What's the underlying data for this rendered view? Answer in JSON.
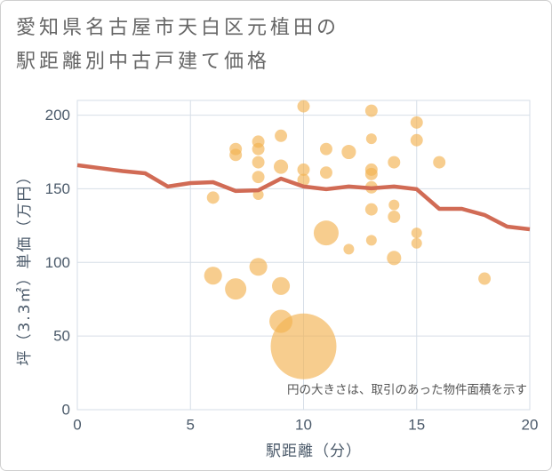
{
  "colors": {
    "bubble": "#f2b252",
    "line": "#d16b55",
    "title": "#666666",
    "axis_text": "#4b5a6a",
    "note_text": "#555555",
    "grid": "#d6dee7"
  },
  "chart_data": {
    "type": "scatter",
    "title_lines": [
      "愛知県名古屋市天白区元植田の",
      "駅距離別中古戸建て価格"
    ],
    "xlabel": "駅距離（分）",
    "ylabel": "坪（3.3㎡）単価（万円）",
    "annotation": "円の大きさは、取引のあった物件面積を示す",
    "xlim": [
      0,
      20
    ],
    "ylim": [
      0,
      210
    ],
    "x_ticks": [
      0,
      5,
      10,
      15,
      20
    ],
    "y_ticks": [
      0,
      50,
      100,
      150,
      200
    ],
    "grid": true,
    "bubbles": [
      {
        "x": 10,
        "y": 206,
        "size": 135
      },
      {
        "x": 13,
        "y": 203,
        "size": 135
      },
      {
        "x": 15,
        "y": 195,
        "size": 135
      },
      {
        "x": 9,
        "y": 186,
        "size": 135
      },
      {
        "x": 8,
        "y": 182,
        "size": 135
      },
      {
        "x": 8,
        "y": 177,
        "size": 135
      },
      {
        "x": 7,
        "y": 177,
        "size": 135
      },
      {
        "x": 7,
        "y": 173,
        "size": 135
      },
      {
        "x": 11,
        "y": 177,
        "size": 135
      },
      {
        "x": 12,
        "y": 175,
        "size": 180
      },
      {
        "x": 13,
        "y": 184,
        "size": 100
      },
      {
        "x": 15,
        "y": 183,
        "size": 135
      },
      {
        "x": 14,
        "y": 168,
        "size": 135
      },
      {
        "x": 16,
        "y": 168,
        "size": 135
      },
      {
        "x": 8,
        "y": 168,
        "size": 135
      },
      {
        "x": 9,
        "y": 165,
        "size": 180
      },
      {
        "x": 10,
        "y": 163,
        "size": 135
      },
      {
        "x": 13,
        "y": 163,
        "size": 135
      },
      {
        "x": 13,
        "y": 160,
        "size": 135
      },
      {
        "x": 11,
        "y": 161,
        "size": 135
      },
      {
        "x": 8,
        "y": 158,
        "size": 135
      },
      {
        "x": 10,
        "y": 156,
        "size": 135
      },
      {
        "x": 13,
        "y": 151,
        "size": 135
      },
      {
        "x": 8,
        "y": 146,
        "size": 100
      },
      {
        "x": 6,
        "y": 144,
        "size": 135
      },
      {
        "x": 14,
        "y": 139,
        "size": 100
      },
      {
        "x": 13,
        "y": 136,
        "size": 135
      },
      {
        "x": 14,
        "y": 131,
        "size": 135
      },
      {
        "x": 15,
        "y": 120,
        "size": 100
      },
      {
        "x": 11,
        "y": 120,
        "size": 545
      },
      {
        "x": 15,
        "y": 113,
        "size": 100
      },
      {
        "x": 13,
        "y": 115,
        "size": 100
      },
      {
        "x": 12,
        "y": 109,
        "size": 100
      },
      {
        "x": 14,
        "y": 103,
        "size": 180
      },
      {
        "x": 8,
        "y": 97,
        "size": 280
      },
      {
        "x": 6,
        "y": 91,
        "size": 280
      },
      {
        "x": 18,
        "y": 89,
        "size": 135
      },
      {
        "x": 9,
        "y": 84,
        "size": 280
      },
      {
        "x": 7,
        "y": 82,
        "size": 400
      },
      {
        "x": 9,
        "y": 60,
        "size": 470
      },
      {
        "x": 10,
        "y": 43,
        "size": 3800
      }
    ],
    "trend_line": {
      "x": [
        0,
        1,
        2,
        3,
        4,
        5,
        6,
        7,
        8,
        9,
        10,
        11,
        12,
        13,
        14,
        15,
        16,
        17,
        18,
        19,
        20
      ],
      "y": [
        166,
        164,
        162,
        160.5,
        151.5,
        153.9,
        154.5,
        148.5,
        149,
        156.9,
        151.5,
        149.7,
        151.5,
        150.3,
        151.5,
        149.7,
        136.4,
        136.4,
        132.2,
        124.3,
        122.5
      ]
    }
  }
}
